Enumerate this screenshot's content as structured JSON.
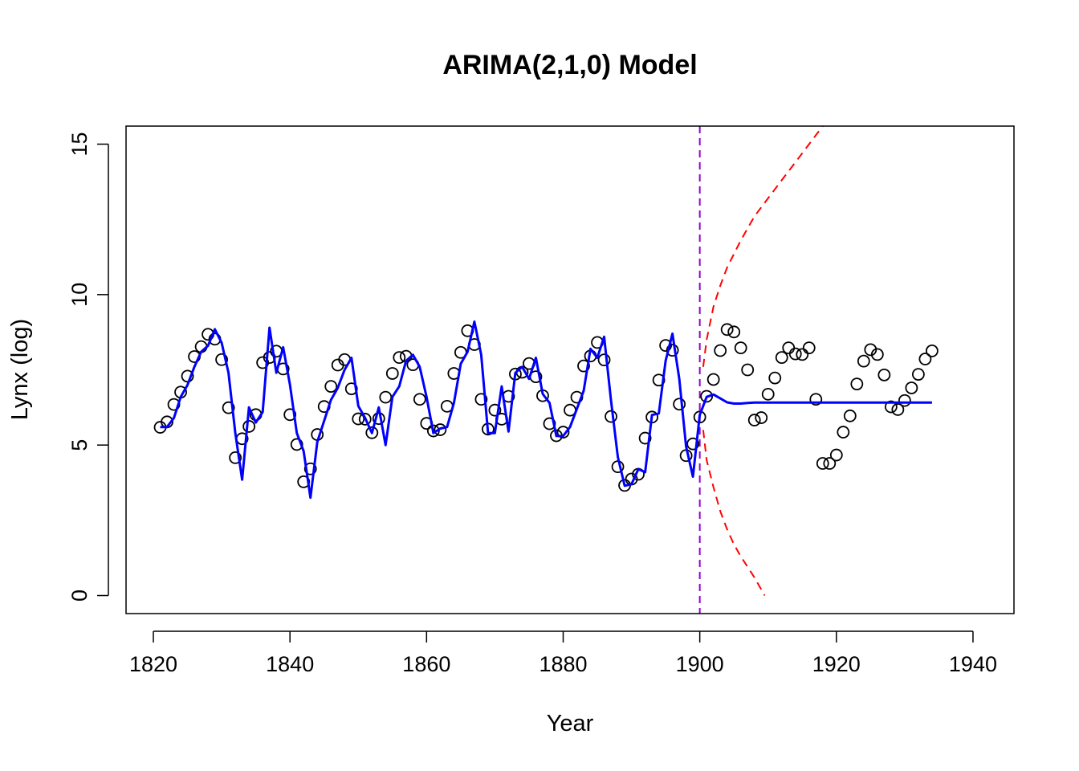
{
  "chart_data": {
    "type": "line",
    "title": "ARIMA(2,1,0) Model",
    "xlabel": "Year",
    "ylabel": "Lynx (log)",
    "xlim": [
      1816,
      1946
    ],
    "ylim": [
      -0.6,
      15.6
    ],
    "x_ticks": [
      1820,
      1840,
      1860,
      1880,
      1900,
      1920,
      1940
    ],
    "y_ticks": [
      0,
      5,
      10,
      15
    ],
    "grid": false,
    "legend": "none",
    "colors": {
      "observed": "#000000",
      "fitted": "#0000ff",
      "interval": "#ff0000",
      "cutoff": "#9400d3"
    },
    "cutoff_year": 1900,
    "series": [
      {
        "kind": "points",
        "x": [
          1821,
          1822,
          1823,
          1824,
          1825,
          1826,
          1827,
          1828,
          1829,
          1830,
          1831,
          1832,
          1833,
          1834,
          1835,
          1836,
          1837,
          1838,
          1839,
          1840,
          1841,
          1842,
          1843,
          1844,
          1845,
          1846,
          1847,
          1848,
          1849,
          1850,
          1851,
          1852,
          1853,
          1854,
          1855,
          1856,
          1857,
          1858,
          1859,
          1860,
          1861,
          1862,
          1863,
          1864,
          1865,
          1866,
          1867,
          1868,
          1869,
          1870,
          1871,
          1872,
          1873,
          1874,
          1875,
          1876,
          1877,
          1878,
          1879,
          1880,
          1881,
          1882,
          1883,
          1884,
          1885,
          1886,
          1887,
          1888,
          1889,
          1890,
          1891,
          1892,
          1893,
          1894,
          1895,
          1896,
          1897,
          1898,
          1899,
          1900,
          1901,
          1902,
          1903,
          1904,
          1905,
          1906,
          1907,
          1908,
          1909,
          1910,
          1911,
          1912,
          1913,
          1914,
          1915,
          1916,
          1917,
          1918,
          1919,
          1920,
          1921,
          1922,
          1923,
          1924,
          1925,
          1926,
          1927,
          1928,
          1929,
          1930,
          1931,
          1932,
          1933,
          1934
        ],
        "y": [
          5.59,
          5.77,
          6.35,
          6.76,
          7.29,
          7.94,
          8.27,
          8.68,
          8.52,
          7.84,
          6.24,
          4.58,
          5.21,
          5.62,
          6.01,
          7.74,
          7.91,
          8.12,
          7.53,
          6.01,
          5.02,
          3.78,
          4.21,
          5.35,
          6.28,
          6.95,
          7.66,
          7.84,
          6.87,
          5.87,
          5.86,
          5.41,
          5.88,
          6.59,
          7.38,
          7.91,
          7.95,
          7.67,
          6.52,
          5.72,
          5.47,
          5.51,
          6.29,
          7.38,
          8.08,
          8.8,
          8.34,
          6.52,
          5.53,
          6.16,
          5.86,
          6.62,
          7.36,
          7.42,
          7.71,
          7.27,
          6.64,
          5.71,
          5.31,
          5.43,
          6.16,
          6.59,
          7.63,
          7.96,
          8.41,
          7.83,
          5.95,
          4.28,
          3.66,
          3.87,
          4.03,
          5.23,
          5.93,
          7.16,
          8.31,
          8.15,
          6.36,
          4.65,
          5.04,
          5.93,
          6.62,
          7.18,
          8.14,
          8.84,
          8.76,
          8.23,
          7.5,
          5.83,
          5.91,
          6.69,
          7.23,
          7.91,
          8.23,
          8.03,
          8.01,
          8.23,
          6.52,
          4.39,
          4.39,
          4.67,
          5.43,
          5.97,
          7.03,
          7.79,
          8.17,
          8.01,
          7.33,
          6.27,
          6.18,
          6.48,
          6.9,
          7.35,
          7.86,
          8.13
        ]
      },
      {
        "kind": "line",
        "x": [
          1821,
          1822,
          1823,
          1824,
          1825,
          1826,
          1827,
          1828,
          1829,
          1830,
          1831,
          1832,
          1833,
          1834,
          1835,
          1836,
          1837,
          1838,
          1839,
          1840,
          1841,
          1842,
          1843,
          1844,
          1845,
          1846,
          1847,
          1848,
          1849,
          1850,
          1851,
          1852,
          1853,
          1854,
          1855,
          1856,
          1857,
          1858,
          1859,
          1860,
          1861,
          1862,
          1863,
          1864,
          1865,
          1866,
          1867,
          1868,
          1869,
          1870,
          1871,
          1872,
          1873,
          1874,
          1875,
          1876,
          1877,
          1878,
          1879,
          1880,
          1881,
          1882,
          1883,
          1884,
          1885,
          1886,
          1887,
          1888,
          1889,
          1890,
          1891,
          1892,
          1893,
          1894,
          1895,
          1896,
          1897,
          1898,
          1899,
          1900,
          1901,
          1902,
          1903,
          1904,
          1905,
          1906,
          1907,
          1908,
          1909,
          1910,
          1915,
          1920,
          1925,
          1930,
          1934
        ],
        "y": [
          5.6,
          5.6,
          5.9,
          6.6,
          7.0,
          7.6,
          8.1,
          8.3,
          8.85,
          8.4,
          7.4,
          5.4,
          3.85,
          6.25,
          5.75,
          6.1,
          8.9,
          7.4,
          8.25,
          7.0,
          5.4,
          4.8,
          3.25,
          5.1,
          5.8,
          6.5,
          6.9,
          7.5,
          7.9,
          6.3,
          5.9,
          5.4,
          6.25,
          5.0,
          6.6,
          6.95,
          7.8,
          8.0,
          7.6,
          6.6,
          5.4,
          5.55,
          5.6,
          6.4,
          7.7,
          8.1,
          9.1,
          8.0,
          5.4,
          5.4,
          6.95,
          5.45,
          7.4,
          7.6,
          7.2,
          7.9,
          6.7,
          6.4,
          5.3,
          5.3,
          5.6,
          6.2,
          6.8,
          8.2,
          7.9,
          8.6,
          6.5,
          4.6,
          3.65,
          3.7,
          4.2,
          4.1,
          6.0,
          6.05,
          7.8,
          8.7,
          7.2,
          4.95,
          3.95,
          6.0,
          6.6,
          6.68,
          6.55,
          6.42,
          6.38,
          6.38,
          6.4,
          6.41,
          6.41,
          6.41,
          6.41,
          6.41,
          6.41,
          6.41,
          6.41
        ]
      },
      {
        "kind": "dashed-line",
        "x": [
          1900.5,
          1901,
          1902,
          1903,
          1904,
          1906,
          1908,
          1910,
          1912,
          1914,
          1916,
          1918
        ],
        "y": [
          7.6,
          8.5,
          9.6,
          10.3,
          10.9,
          11.8,
          12.6,
          13.2,
          13.8,
          14.4,
          15.0,
          15.6
        ]
      },
      {
        "kind": "dashed-line",
        "x": [
          1900.5,
          1901,
          1902,
          1903,
          1904,
          1905,
          1906,
          1907,
          1908,
          1909,
          1909.5
        ],
        "y": [
          5.5,
          4.5,
          3.6,
          2.8,
          2.2,
          1.7,
          1.3,
          0.95,
          0.6,
          0.2,
          0.0
        ]
      }
    ]
  }
}
